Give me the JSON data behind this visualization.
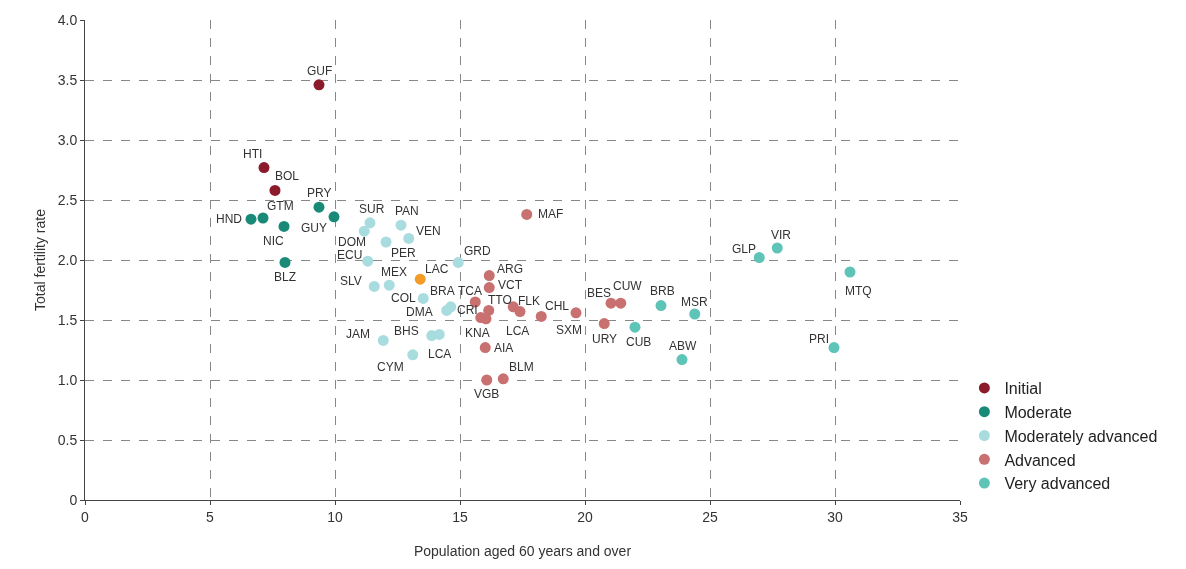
{
  "chart_data": {
    "type": "scatter",
    "xlabel": "Population aged 60 years and over",
    "ylabel": "Total fertility rate",
    "xlim": [
      0,
      35
    ],
    "xticks": [
      0,
      5,
      10,
      15,
      20,
      25,
      30,
      35
    ],
    "ylim": [
      0,
      4
    ],
    "yticks": [
      {
        "value": 0,
        "label": "0"
      },
      {
        "value": 0.5,
        "label": "0.5"
      },
      {
        "value": 1,
        "label": "1.0"
      },
      {
        "value": 1.5,
        "label": "1.5"
      },
      {
        "value": 2,
        "label": "2.0"
      },
      {
        "value": 2.5,
        "label": "2.5"
      },
      {
        "value": 3,
        "label": "3.0"
      },
      {
        "value": 3.5,
        "label": "3.5"
      },
      {
        "value": 4,
        "label": "4.0"
      }
    ],
    "grid": true,
    "legend": "bottom right",
    "marker": "circle",
    "series": [
      {
        "name": "Initial",
        "color": "#8b1a2b",
        "x": [
          9.36,
          7.16,
          7.6
        ],
        "values": [
          3.46,
          2.77,
          2.58
        ]
      },
      {
        "name": "Moderate",
        "color": "#1a8a78",
        "x": [
          6.64,
          7.12,
          9.36,
          9.96,
          7.96,
          8.0
        ],
        "values": [
          2.34,
          2.35,
          2.44,
          2.36,
          2.28,
          1.98
        ]
      },
      {
        "name": "Moderately advanced",
        "color": "#a8dcdf",
        "x": [
          11.4,
          11.17,
          12.64,
          12.95,
          12.04,
          11.31,
          14.93,
          11.57,
          12.17,
          13.53,
          14.63,
          14.47,
          11.93,
          13.87,
          14.17,
          13.11
        ],
        "values": [
          2.31,
          2.24,
          2.29,
          2.18,
          2.15,
          1.99,
          1.98,
          1.78,
          1.79,
          1.68,
          1.61,
          1.58,
          1.33,
          1.37,
          1.38,
          1.21
        ]
      },
      {
        "name": "Advanced",
        "color": "#c97070",
        "x": [
          17.67,
          16.17,
          16.17,
          15.61,
          16.15,
          15.83,
          16.04,
          17.13,
          17.4,
          18.25,
          19.64,
          16.01,
          16.07,
          16.73,
          21.04,
          21.43,
          20.77
        ],
        "values": [
          2.38,
          1.87,
          1.77,
          1.65,
          1.58,
          1.52,
          1.51,
          1.61,
          1.57,
          1.53,
          1.56,
          1.27,
          1.0,
          1.01,
          1.64,
          1.64,
          1.47
        ]
      },
      {
        "name": "Very advanced",
        "color": "#5fc4b8",
        "x": [
          23.04,
          24.39,
          22.0,
          23.88,
          29.96,
          26.97,
          27.69,
          30.6
        ],
        "values": [
          1.62,
          1.55,
          1.44,
          1.17,
          1.27,
          2.02,
          2.1,
          1.9
        ]
      },
      {
        "color": "#f39c27",
        "x": [
          13.41
        ],
        "values": [
          1.84
        ]
      }
    ],
    "annotations": [
      {
        "text": "GUF",
        "x": 9.36,
        "y": 3.46
      },
      {
        "text": "HTI",
        "x": 7.16,
        "y": 2.77
      },
      {
        "text": "BOL",
        "x": 7.6,
        "y": 2.58
      },
      {
        "text": "HND",
        "x": 6.64,
        "y": 2.34
      },
      {
        "text": "GTM",
        "x": 7.12,
        "y": 2.35
      },
      {
        "text": "PRY",
        "x": 9.36,
        "y": 2.44
      },
      {
        "text": "GUY",
        "x": 9.96,
        "y": 2.36
      },
      {
        "text": "NIC",
        "x": 7.96,
        "y": 2.28
      },
      {
        "text": "BLZ",
        "x": 8.0,
        "y": 1.98
      },
      {
        "text": "SUR",
        "x": 11.4,
        "y": 2.31
      },
      {
        "text": "DOM",
        "x": 11.17,
        "y": 2.24
      },
      {
        "text": "PAN",
        "x": 12.64,
        "y": 2.29
      },
      {
        "text": "VEN",
        "x": 12.95,
        "y": 2.18
      },
      {
        "text": "PER",
        "x": 12.04,
        "y": 2.15
      },
      {
        "text": "ECU",
        "x": 11.31,
        "y": 1.99
      },
      {
        "text": "GRD",
        "x": 14.93,
        "y": 1.98
      },
      {
        "text": "SLV",
        "x": 11.57,
        "y": 1.78
      },
      {
        "text": "MEX",
        "x": 12.17,
        "y": 1.79
      },
      {
        "text": "COL",
        "x": 13.53,
        "y": 1.68
      },
      {
        "text": "BRA",
        "x": 14.63,
        "y": 1.61
      },
      {
        "text": "DMA",
        "x": 14.47,
        "y": 1.58
      },
      {
        "text": "JAM",
        "x": 11.93,
        "y": 1.33
      },
      {
        "text": "BHS",
        "x": 13.87,
        "y": 1.37
      },
      {
        "text": "LCA",
        "x": 14.17,
        "y": 1.38
      },
      {
        "text": "CYM",
        "x": 13.11,
        "y": 1.21
      },
      {
        "text": "LAC",
        "x": 13.41,
        "y": 1.84
      },
      {
        "text": "MAF",
        "x": 17.67,
        "y": 2.38
      },
      {
        "text": "ARG",
        "x": 16.17,
        "y": 1.87
      },
      {
        "text": "VCT",
        "x": 16.17,
        "y": 1.77
      },
      {
        "text": "TCA",
        "x": 15.61,
        "y": 1.65
      },
      {
        "text": "TTO",
        "x": 16.15,
        "y": 1.58
      },
      {
        "text": "CRI",
        "x": 15.83,
        "y": 1.52
      },
      {
        "text": "KNA",
        "x": 16.04,
        "y": 1.51
      },
      {
        "text": "FLK",
        "x": 17.13,
        "y": 1.61
      },
      {
        "text": "LCA",
        "x": 17.4,
        "y": 1.57
      },
      {
        "text": "CHL",
        "x": 18.25,
        "y": 1.53
      },
      {
        "text": "SXM",
        "x": 19.64,
        "y": 1.56
      },
      {
        "text": "AIA",
        "x": 16.01,
        "y": 1.27
      },
      {
        "text": "VGB",
        "x": 16.07,
        "y": 1.0
      },
      {
        "text": "BLM",
        "x": 16.73,
        "y": 1.01
      },
      {
        "text": "BES",
        "x": 21.04,
        "y": 1.64
      },
      {
        "text": "CUW",
        "x": 21.43,
        "y": 1.64
      },
      {
        "text": "URY",
        "x": 20.77,
        "y": 1.47
      },
      {
        "text": "BRB",
        "x": 23.04,
        "y": 1.62
      },
      {
        "text": "MSR",
        "x": 24.39,
        "y": 1.55
      },
      {
        "text": "CUB",
        "x": 22.0,
        "y": 1.44
      },
      {
        "text": "ABW",
        "x": 23.88,
        "y": 1.17
      },
      {
        "text": "PRI",
        "x": 29.96,
        "y": 1.27
      },
      {
        "text": "GLP",
        "x": 26.97,
        "y": 2.02
      },
      {
        "text": "VIR",
        "x": 27.69,
        "y": 2.1
      },
      {
        "text": "MTQ",
        "x": 30.6,
        "y": 1.9
      }
    ]
  }
}
